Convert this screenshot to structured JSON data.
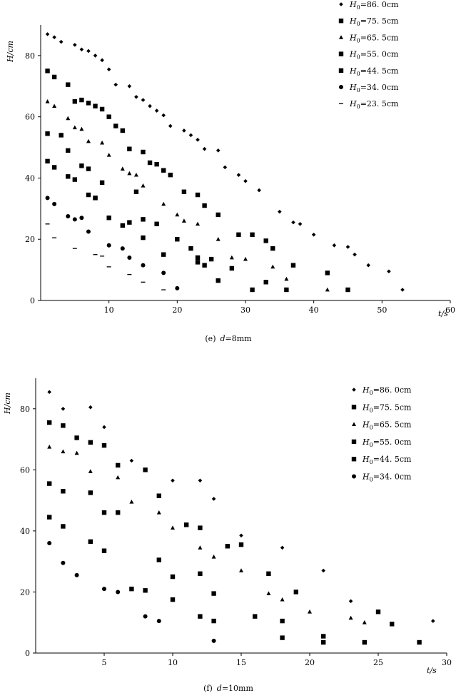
{
  "chart_data": [
    {
      "type": "scatter",
      "caption_prefix": "(e)",
      "caption_var": "d",
      "caption_value": "=8mm",
      "xlabel": "t/s",
      "ylabel": "H/cm",
      "xlim": [
        0,
        60
      ],
      "ylim": [
        0,
        90
      ],
      "xticks": [
        10,
        20,
        30,
        40,
        50,
        60
      ],
      "yticks": [
        0,
        20,
        40,
        60,
        80
      ],
      "grid": false,
      "legend_position": "top-right",
      "series": [
        {
          "name": "H0=86.0cm",
          "legend_main": "H",
          "legend_sub": "0",
          "legend_rest": "=86. 0cm",
          "marker": "diamond",
          "x": [
            1,
            2,
            3,
            5,
            6,
            7,
            8,
            9,
            10,
            11,
            13,
            14,
            15,
            16,
            17,
            18,
            19,
            21,
            22,
            23,
            24,
            26,
            27,
            29,
            30,
            32,
            35,
            37,
            38,
            40,
            43,
            45,
            46,
            48,
            51,
            53
          ],
          "y": [
            87,
            86,
            84.5,
            83.5,
            82,
            81.5,
            80,
            78.5,
            75.5,
            70.5,
            70,
            66.5,
            65.5,
            63.5,
            62,
            60.5,
            57,
            55.5,
            54,
            52.5,
            49.5,
            49,
            43.5,
            41,
            39,
            36,
            29,
            25.5,
            25,
            21.5,
            18,
            17.5,
            15,
            11.5,
            9.5,
            3.5
          ]
        },
        {
          "name": "H0=75.5cm",
          "legend_main": "H",
          "legend_sub": "0",
          "legend_rest": "=75. 5cm",
          "marker": "square",
          "x": [
            1,
            2,
            4,
            5,
            6,
            7,
            8,
            9,
            10,
            11,
            12,
            13,
            15,
            16,
            17,
            18,
            19,
            21,
            23,
            24,
            26,
            29,
            31,
            33,
            34,
            37,
            42,
            45
          ],
          "y": [
            75,
            73,
            70.5,
            65,
            65.5,
            64.5,
            63.5,
            62.5,
            60,
            57,
            55.5,
            49.5,
            48.5,
            45,
            44.5,
            42.5,
            41,
            35.5,
            34.5,
            31,
            28,
            21.5,
            21.5,
            19.5,
            17,
            11.5,
            9,
            3.5
          ]
        },
        {
          "name": "H0=65.5cm",
          "legend_main": "H",
          "legend_sub": "0",
          "legend_rest": "=65. 5cm",
          "marker": "triangle",
          "x": [
            1,
            2,
            4,
            5,
            6,
            7,
            9,
            10,
            12,
            13,
            14,
            15,
            18,
            20,
            21,
            23,
            26,
            28,
            30,
            34,
            36,
            42
          ],
          "y": [
            65,
            63.5,
            59.5,
            56.5,
            56,
            52,
            51.5,
            47.5,
            43,
            41.5,
            41,
            37.5,
            31.5,
            28,
            26,
            25,
            20,
            14,
            13.5,
            11,
            7,
            3.5
          ]
        },
        {
          "name": "H0=55.0cm",
          "legend_main": "H",
          "legend_sub": "0",
          "legend_rest": "=55. 0cm",
          "marker": "square",
          "x": [
            1,
            3,
            4,
            6,
            7,
            8,
            9,
            10,
            12,
            13,
            14,
            15,
            17,
            20,
            22,
            23,
            24,
            25,
            26,
            28,
            31,
            33,
            36
          ],
          "y": [
            54.5,
            54,
            49,
            44,
            43,
            33.5,
            38.5,
            27,
            24.5,
            25.5,
            35.5,
            26.5,
            25,
            20,
            17,
            14,
            11.5,
            13.5,
            6.5,
            10.5,
            3.5,
            6,
            3.5
          ]
        },
        {
          "name": "H0=44.5cm",
          "legend_main": "H",
          "legend_sub": "0",
          "legend_rest": "=44. 5cm",
          "marker": "square",
          "x": [
            1,
            2,
            4,
            5,
            7,
            8,
            15,
            18,
            23
          ],
          "y": [
            45.5,
            43.5,
            40.5,
            39.5,
            34.5,
            33.5,
            20.5,
            15,
            12.5
          ]
        },
        {
          "name": "H0=34.0cm",
          "legend_main": "H",
          "legend_sub": "0",
          "legend_rest": "=34. 0cm",
          "marker": "circle",
          "x": [
            1,
            2,
            4,
            5,
            6,
            7,
            10,
            12,
            13,
            15,
            18,
            20
          ],
          "y": [
            33.5,
            31.5,
            27.5,
            26.5,
            27,
            22.5,
            18,
            17,
            14,
            11.5,
            9,
            4
          ]
        },
        {
          "name": "H0=23.5cm",
          "legend_main": "H",
          "legend_sub": "0",
          "legend_rest": "=23. 5cm",
          "marker": "dash",
          "x": [
            1,
            2,
            5,
            8,
            9,
            10,
            13,
            15,
            18
          ],
          "y": [
            25,
            20.5,
            17,
            15,
            14.5,
            11,
            8.5,
            6,
            3.5
          ]
        }
      ]
    },
    {
      "type": "scatter",
      "caption_prefix": "(f)",
      "caption_var": "d",
      "caption_value": "=10mm",
      "xlabel": "t/s",
      "ylabel": "H/cm",
      "xlim": [
        0,
        30
      ],
      "ylim": [
        0,
        90
      ],
      "xticks": [
        5,
        10,
        15,
        20,
        25,
        30
      ],
      "yticks": [
        0,
        20,
        40,
        60,
        80
      ],
      "grid": false,
      "legend_position": "top-right",
      "series": [
        {
          "name": "H0=86.0cm",
          "legend_main": "H",
          "legend_sub": "0",
          "legend_rest": "=86. 0cm",
          "marker": "diamond",
          "x": [
            1,
            2,
            4,
            5,
            7,
            10,
            12,
            13,
            15,
            18,
            21,
            23,
            29
          ],
          "y": [
            85.5,
            80,
            80.5,
            74,
            63,
            56.5,
            56.5,
            50.5,
            38.5,
            34.5,
            27,
            17,
            10.5
          ]
        },
        {
          "name": "H0=75.5cm",
          "legend_main": "H",
          "legend_sub": "0",
          "legend_rest": "=75. 5cm",
          "marker": "square",
          "x": [
            1,
            2,
            3,
            4,
            5,
            6,
            8,
            9,
            11,
            12,
            14,
            15,
            17,
            19,
            21,
            25,
            26
          ],
          "y": [
            75.5,
            74.5,
            70.5,
            69,
            68,
            61.5,
            60,
            51.5,
            42,
            41,
            35,
            35.5,
            26,
            20,
            5.5,
            13.5,
            9.5
          ]
        },
        {
          "name": "H0=65.5cm",
          "legend_main": "H",
          "legend_sub": "0",
          "legend_rest": "=65. 5cm",
          "marker": "triangle",
          "x": [
            1,
            2,
            3,
            4,
            6,
            7,
            9,
            10,
            12,
            13,
            15,
            17,
            18,
            20,
            23,
            24
          ],
          "y": [
            67.5,
            66,
            65.5,
            59.5,
            57.5,
            49.5,
            46,
            41,
            34.5,
            31.5,
            27,
            19.5,
            17.5,
            13.5,
            11.5,
            10
          ]
        },
        {
          "name": "H0=55.0cm",
          "legend_main": "H",
          "legend_sub": "0",
          "legend_rest": "=55. 0cm",
          "marker": "square",
          "x": [
            1,
            2,
            4,
            5,
            6,
            9,
            10,
            12,
            13,
            16,
            18,
            21,
            24,
            28
          ],
          "y": [
            55.5,
            53,
            52.5,
            46,
            46,
            30.5,
            17.5,
            12,
            10.5,
            12,
            5,
            3.5,
            3.5,
            3.5
          ]
        },
        {
          "name": "H0=44.5cm",
          "legend_main": "H",
          "legend_sub": "0",
          "legend_rest": "=44. 5cm",
          "marker": "square",
          "x": [
            1,
            2,
            4,
            5,
            7,
            8,
            10,
            12,
            13,
            18
          ],
          "y": [
            44.5,
            41.5,
            36.5,
            33.5,
            21,
            20.5,
            25,
            26,
            19.5,
            10.5
          ]
        },
        {
          "name": "H0=34.0cm",
          "legend_main": "H",
          "legend_sub": "0",
          "legend_rest": "=34. 0cm",
          "marker": "circle",
          "x": [
            1,
            2,
            3,
            5,
            6,
            8,
            9,
            13
          ],
          "y": [
            36,
            29.5,
            25.5,
            21,
            20,
            12,
            10.5,
            4
          ]
        }
      ]
    }
  ]
}
